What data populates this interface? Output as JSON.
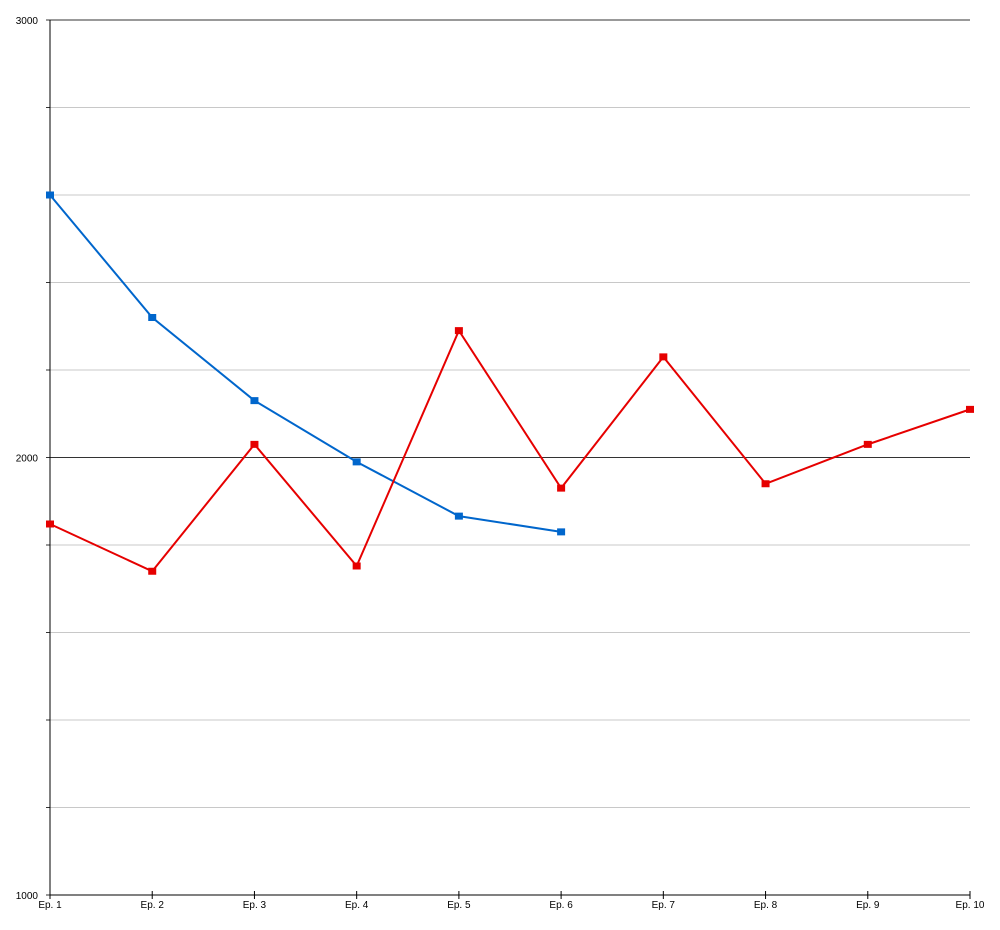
{
  "chart_data": {
    "type": "line",
    "title": "",
    "xlabel": "",
    "ylabel": "",
    "categories": [
      "Ep. 1",
      "Ep. 2",
      "Ep. 3",
      "Ep. 4",
      "Ep. 5",
      "Ep. 6",
      "Ep. 7",
      "Ep. 8",
      "Ep. 9",
      "Ep. 10"
    ],
    "ylim": [
      1000,
      3000
    ],
    "y_ticks_labeled": [
      1000,
      2000,
      3000
    ],
    "y_grid_step": 200,
    "grid": true,
    "series": [
      {
        "color": "#0066cc",
        "marker": "square",
        "values": [
          2600,
          2320,
          2130,
          1990,
          1866,
          1830,
          null,
          null,
          null,
          null
        ]
      },
      {
        "color": "#e60000",
        "marker": "square",
        "values": [
          1848,
          1740,
          2030,
          1752,
          2290,
          1930,
          2230,
          1940,
          2030,
          2110
        ]
      }
    ]
  }
}
